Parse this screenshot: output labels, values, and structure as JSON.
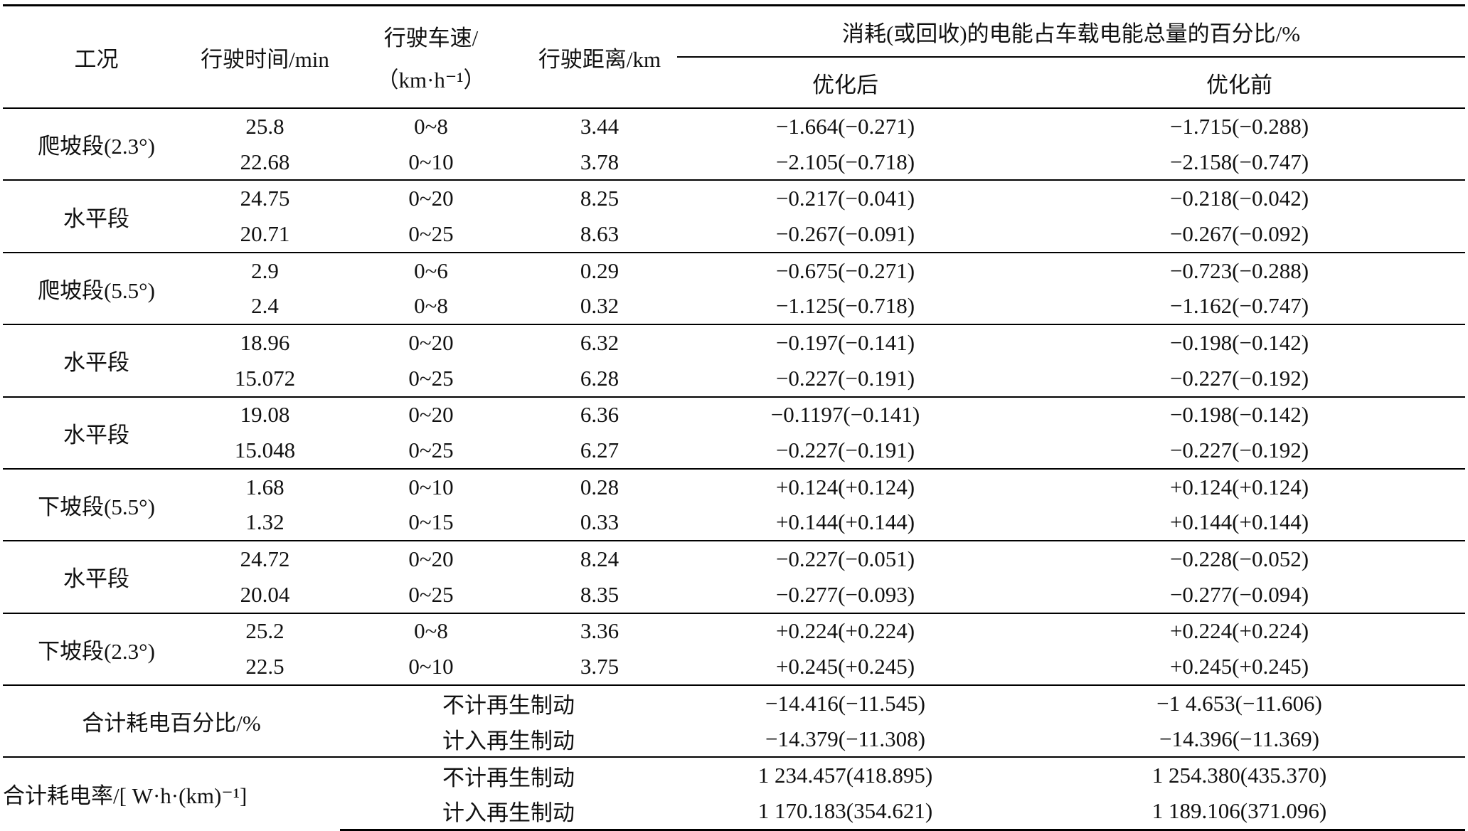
{
  "header": {
    "columns": [
      "工况",
      "行驶时间/min",
      "行驶车速/",
      "（km·h⁻¹）",
      "行驶距离/km"
    ],
    "group": "消耗(或回收)的电能占车载电能总量的百分比/%",
    "sub": [
      "优化后",
      "优化前"
    ]
  },
  "groups": [
    {
      "label": "爬坡段(2.3°)",
      "rows": [
        [
          "25.8",
          "0~8",
          "3.44",
          "−1.664(−0.271)",
          "−1.715(−0.288)"
        ],
        [
          "22.68",
          "0~10",
          "3.78",
          "−2.105(−0.718)",
          "−2.158(−0.747)"
        ]
      ]
    },
    {
      "label": "水平段",
      "rows": [
        [
          "24.75",
          "0~20",
          "8.25",
          "−0.217(−0.041)",
          "−0.218(−0.042)"
        ],
        [
          "20.71",
          "0~25",
          "8.63",
          "−0.267(−0.091)",
          "−0.267(−0.092)"
        ]
      ]
    },
    {
      "label": "爬坡段(5.5°)",
      "rows": [
        [
          "2.9",
          "0~6",
          "0.29",
          "−0.675(−0.271)",
          "−0.723(−0.288)"
        ],
        [
          "2.4",
          "0~8",
          "0.32",
          "−1.125(−0.718)",
          "−1.162(−0.747)"
        ]
      ]
    },
    {
      "label": "水平段",
      "rows": [
        [
          "18.96",
          "0~20",
          "6.32",
          "−0.197(−0.141)",
          "−0.198(−0.142)"
        ],
        [
          "15.072",
          "0~25",
          "6.28",
          "−0.227(−0.191)",
          "−0.227(−0.192)"
        ]
      ]
    },
    {
      "label": "水平段",
      "rows": [
        [
          "19.08",
          "0~20",
          "6.36",
          "−0.1197(−0.141)",
          "−0.198(−0.142)"
        ],
        [
          "15.048",
          "0~25",
          "6.27",
          "−0.227(−0.191)",
          "−0.227(−0.192)"
        ]
      ]
    },
    {
      "label": "下坡段(5.5°)",
      "rows": [
        [
          "1.68",
          "0~10",
          "0.28",
          "+0.124(+0.124)",
          "+0.124(+0.124)"
        ],
        [
          "1.32",
          "0~15",
          "0.33",
          "+0.144(+0.144)",
          "+0.144(+0.144)"
        ]
      ]
    },
    {
      "label": "水平段",
      "rows": [
        [
          "24.72",
          "0~20",
          "8.24",
          "−0.227(−0.051)",
          "−0.228(−0.052)"
        ],
        [
          "20.04",
          "0~25",
          "8.35",
          "−0.277(−0.093)",
          "−0.277(−0.094)"
        ]
      ]
    },
    {
      "label": "下坡段(2.3°)",
      "rows": [
        [
          "25.2",
          "0~8",
          "3.36",
          "+0.224(+0.224)",
          "+0.224(+0.224)"
        ],
        [
          "22.5",
          "0~10",
          "3.75",
          "+0.245(+0.245)",
          "+0.245(+0.245)"
        ]
      ]
    }
  ],
  "totals": [
    {
      "label": "合计耗电百分比/%",
      "rows": [
        [
          "不计再生制动",
          "−14.416(−11.545)",
          "−1 4.653(−11.606)"
        ],
        [
          "计入再生制动",
          "−14.379(−11.308)",
          "−14.396(−11.369)"
        ]
      ]
    },
    {
      "label": "合计耗电率/[ W·h·(km)⁻¹]",
      "rows": [
        [
          "不计再生制动",
          "1 234.457(418.895)",
          "1 254.380(435.370)"
        ],
        [
          "计入再生制动",
          "1 170.183(354.621)",
          "1 189.106(371.096)"
        ]
      ]
    }
  ]
}
